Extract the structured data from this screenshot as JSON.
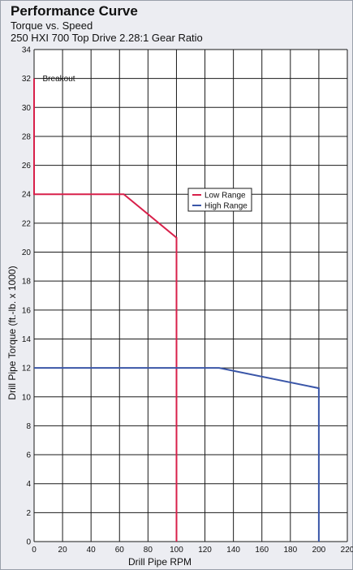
{
  "chart_data": {
    "type": "line",
    "title": "Performance Curve",
    "subtitle": "Torque vs. Speed",
    "subtitle2": "250 HXI 700 Top Drive 2.28:1 Gear Ratio",
    "xlabel": "Drill Pipe RPM",
    "ylabel": "Drill Pipe Torque (ft.-lb. x 1000)",
    "xlim": [
      0,
      220
    ],
    "ylim": [
      0,
      34
    ],
    "xticks": [
      0,
      20,
      40,
      60,
      80,
      100,
      120,
      140,
      160,
      180,
      200,
      220
    ],
    "yticks": [
      0,
      2,
      4,
      6,
      8,
      10,
      12,
      14,
      16,
      18,
      20,
      22,
      24,
      26,
      28,
      30,
      32,
      34
    ],
    "grid": true,
    "legend_position": "center-right",
    "series": [
      {
        "name": "Low Range",
        "color": "#d8204a",
        "points": [
          [
            0,
            32
          ],
          [
            0,
            24
          ],
          [
            63,
            24
          ],
          [
            100,
            21
          ],
          [
            100,
            0
          ]
        ]
      },
      {
        "name": "High Range",
        "color": "#3a56a8",
        "points": [
          [
            0,
            12
          ],
          [
            130,
            12
          ],
          [
            200,
            10.6
          ],
          [
            200,
            0
          ]
        ]
      }
    ],
    "annotations": [
      {
        "text": "Breakout",
        "x": 6,
        "y": 32
      }
    ]
  }
}
